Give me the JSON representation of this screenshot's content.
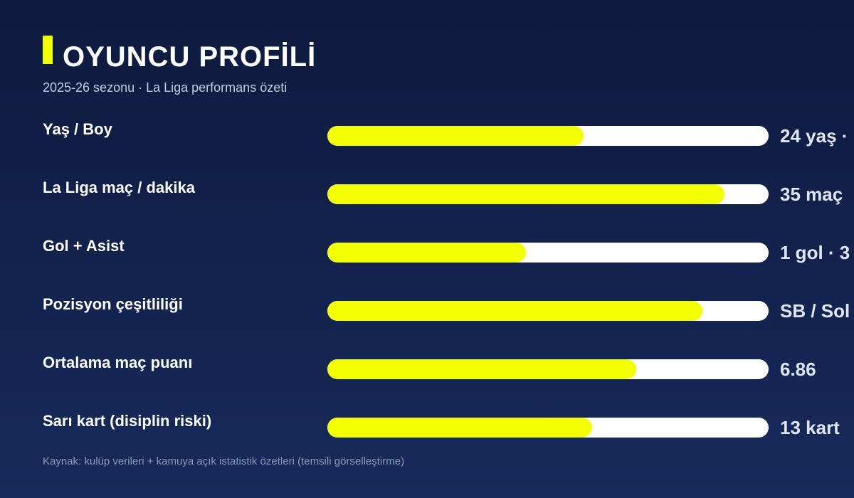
{
  "header": {
    "title": "OYUNCU PROFİLİ",
    "subtitle": "2025-26 sezonu · La Liga performans özeti",
    "accent_color": "#f2ff00"
  },
  "chart_data": {
    "type": "bar",
    "orientation": "horizontal",
    "title": "OYUNCU PROFİLİ",
    "subtitle": "2025-26 sezonu · La Liga performans özeti",
    "categories": [
      "Yaş / Boy",
      "La Liga maç / dakika",
      "Gol + Asist",
      "Pozisyon çeşitliliği",
      "Ortalama maç puanı",
      "Sarı kart (disiplin riski)"
    ],
    "values": [
      0.58,
      0.9,
      0.45,
      0.85,
      0.7,
      0.6
    ],
    "value_scale": "fraction of track filled (0–1)",
    "xlim": [
      0,
      1
    ],
    "value_labels": [
      "24 yaş ·",
      "35 maç",
      "1 gol · 3",
      "SB / Sol",
      "6.86",
      "13 kart"
    ],
    "colors": {
      "fill": "#f2ff00",
      "track": "#ffffff",
      "background_top": "#0e1a3e",
      "background_bottom": "#172a5b"
    },
    "grid": false,
    "legend": "none"
  },
  "footer": {
    "source": "Kaynak: kulüp verileri + kamuya açık istatistik özetleri (temsili görselleştirme)"
  }
}
